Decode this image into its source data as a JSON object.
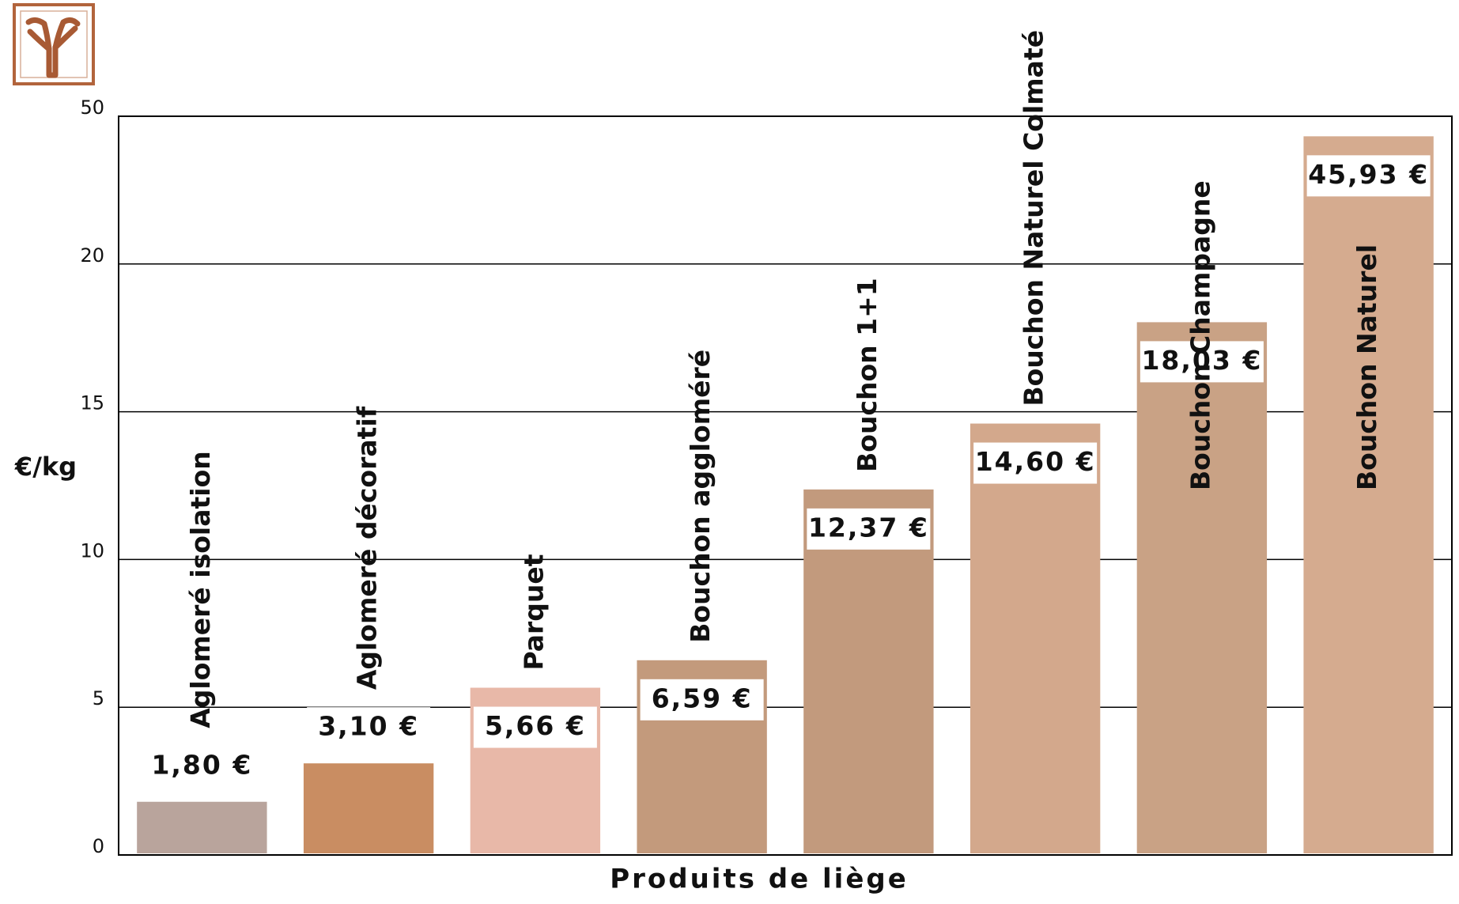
{
  "chart_data": {
    "type": "bar",
    "x_label": "Produits  de liège",
    "y_label": "€/kg",
    "categories": [
      "Aglomeré isolation",
      "Aglomeré décoratif",
      "Parquet",
      "Bouchon aggloméré",
      "Bouchon 1+1",
      "Bouchon Naturel Colmaté",
      "Bouchon Champagne",
      "Bouchon Naturel"
    ],
    "values": [
      1.8,
      3.1,
      5.66,
      6.59,
      12.37,
      14.6,
      18.03,
      45.93
    ],
    "value_labels": [
      "1,80 €",
      "3,10 €",
      "5,66 €",
      "6,59 €",
      "12,37 €",
      "14,60 €",
      "18,03 €",
      "45,93 €"
    ],
    "colors": [
      "#b9a49c",
      "#c98d62",
      "#e8b8a8",
      "#c39a7c",
      "#c29a7d",
      "#d3a88c",
      "#c9a285",
      "#d5ab8f"
    ],
    "ylim": [
      0,
      50
    ],
    "yticks": [
      0,
      5,
      10,
      15,
      20,
      50
    ],
    "grid": true
  }
}
